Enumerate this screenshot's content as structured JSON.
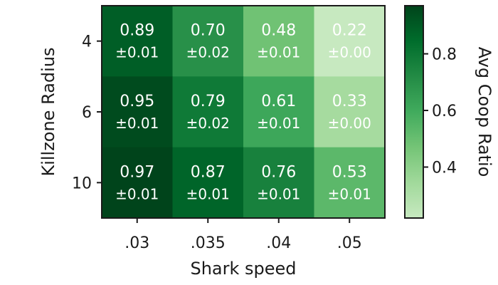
{
  "chart_data": {
    "type": "heatmap",
    "title": "",
    "xlabel": "Shark speed",
    "ylabel": "Killzone Radius",
    "x_categories": [
      ".03",
      ".035",
      ".04",
      ".05"
    ],
    "y_categories": [
      "4",
      "6",
      "10"
    ],
    "values": [
      [
        0.89,
        0.7,
        0.48,
        0.22
      ],
      [
        0.95,
        0.79,
        0.61,
        0.33
      ],
      [
        0.97,
        0.87,
        0.76,
        0.53
      ]
    ],
    "errors": [
      [
        0.01,
        0.02,
        0.01,
        0.0
      ],
      [
        0.01,
        0.02,
        0.01,
        0.0
      ],
      [
        0.01,
        0.01,
        0.01,
        0.01
      ]
    ],
    "value_labels": [
      [
        "0.89",
        "0.70",
        "0.48",
        "0.22"
      ],
      [
        "0.95",
        "0.79",
        "0.61",
        "0.33"
      ],
      [
        "0.97",
        "0.87",
        "0.76",
        "0.53"
      ]
    ],
    "error_labels": [
      [
        "±0.01",
        "±0.02",
        "±0.01",
        "±0.00"
      ],
      [
        "±0.01",
        "±0.02",
        "±0.01",
        "±0.00"
      ],
      [
        "±0.01",
        "±0.01",
        "±0.01",
        "±0.01"
      ]
    ],
    "colorbar": {
      "label": "Avg Coop Ratio",
      "range": [
        0.22,
        0.97
      ],
      "ticks": [
        0.4,
        0.6,
        0.8
      ],
      "tick_labels": [
        "0.4",
        "0.6",
        "0.8"
      ],
      "colormap": "Greens",
      "colors": [
        "#c7e9c0",
        "#a1d99b",
        "#74c476",
        "#41ab5d",
        "#238b45",
        "#006d2c",
        "#00441b"
      ]
    }
  }
}
